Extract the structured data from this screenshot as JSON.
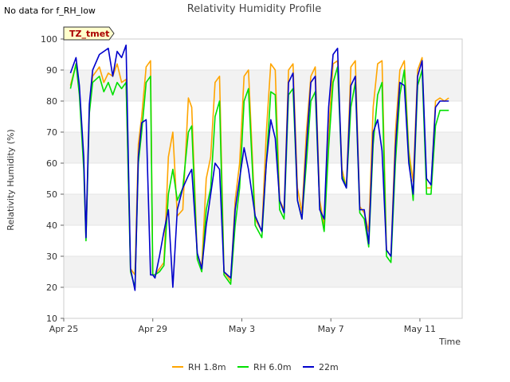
{
  "note": "No data for f_RH_low",
  "chart_data": {
    "type": "line",
    "title": "Relativity Humidity Profile",
    "xlabel": "Time",
    "ylabel": "Relativity Humidity (%)",
    "ylim": [
      10,
      100
    ],
    "xlim": [
      0,
      17.9
    ],
    "yticks": [
      10,
      20,
      30,
      40,
      50,
      60,
      70,
      80,
      90,
      100
    ],
    "xticks": [
      {
        "value": 0,
        "label": "Apr 25"
      },
      {
        "value": 4,
        "label": "Apr 29"
      },
      {
        "value": 8,
        "label": "May 3"
      },
      {
        "value": 12,
        "label": "May 7"
      },
      {
        "value": 16,
        "label": "May 11"
      }
    ],
    "grid": "horizontal alternating bands",
    "annotation": "TZ_tmet",
    "legend_position": "bottom",
    "series": [
      {
        "name": "RH 1.8m",
        "color": "#FFA500",
        "x": [
          0.3,
          0.55,
          0.7,
          0.9,
          1.0,
          1.15,
          1.3,
          1.6,
          1.8,
          2.0,
          2.2,
          2.4,
          2.6,
          2.8,
          3.0,
          3.2,
          3.35,
          3.5,
          3.7,
          3.9,
          4.0,
          4.1,
          4.3,
          4.5,
          4.7,
          4.9,
          5.1,
          5.35,
          5.6,
          5.75,
          6.0,
          6.2,
          6.4,
          6.6,
          6.8,
          7.0,
          7.2,
          7.5,
          7.7,
          7.9,
          8.1,
          8.3,
          8.6,
          8.9,
          9.1,
          9.3,
          9.5,
          9.7,
          9.9,
          10.1,
          10.3,
          10.5,
          10.7,
          10.9,
          11.1,
          11.3,
          11.5,
          11.7,
          11.9,
          12.1,
          12.3,
          12.5,
          12.7,
          12.9,
          13.1,
          13.3,
          13.5,
          13.7,
          13.9,
          14.1,
          14.3,
          14.5,
          14.7,
          14.9,
          15.1,
          15.3,
          15.5,
          15.7,
          15.9,
          16.1,
          16.3,
          16.5,
          16.7,
          16.9,
          17.1,
          17.3
        ],
        "values": [
          85,
          92,
          84,
          60,
          36,
          78,
          88,
          91,
          86,
          89,
          88,
          92,
          86,
          87,
          26,
          24,
          66,
          75,
          91,
          93,
          24,
          24,
          26,
          28,
          62,
          70,
          43,
          45,
          81,
          78,
          30,
          27,
          55,
          62,
          86,
          88,
          25,
          22,
          48,
          60,
          88,
          90,
          42,
          38,
          70,
          92,
          90,
          48,
          45,
          90,
          92,
          52,
          44,
          70,
          88,
          91,
          48,
          40,
          70,
          92,
          93,
          58,
          52,
          91,
          93,
          46,
          44,
          38,
          78,
          92,
          93,
          32,
          30,
          70,
          90,
          93,
          64,
          54,
          90,
          94,
          52,
          52,
          80,
          81,
          80,
          81
        ]
      },
      {
        "name": "RH 6.0m",
        "color": "#00E000",
        "x": [
          0.3,
          0.55,
          0.7,
          0.9,
          1.0,
          1.15,
          1.3,
          1.6,
          1.8,
          2.0,
          2.2,
          2.4,
          2.6,
          2.8,
          3.0,
          3.2,
          3.35,
          3.5,
          3.7,
          3.9,
          4.0,
          4.1,
          4.3,
          4.5,
          4.7,
          4.9,
          5.1,
          5.35,
          5.6,
          5.75,
          6.0,
          6.2,
          6.4,
          6.6,
          6.8,
          7.0,
          7.2,
          7.5,
          7.7,
          7.9,
          8.1,
          8.3,
          8.6,
          8.9,
          9.1,
          9.3,
          9.5,
          9.7,
          9.9,
          10.1,
          10.3,
          10.5,
          10.7,
          10.9,
          11.1,
          11.3,
          11.5,
          11.7,
          11.9,
          12.1,
          12.3,
          12.5,
          12.7,
          12.9,
          13.1,
          13.3,
          13.5,
          13.7,
          13.9,
          14.1,
          14.3,
          14.5,
          14.7,
          14.9,
          15.1,
          15.3,
          15.5,
          15.7,
          15.9,
          16.1,
          16.3,
          16.5,
          16.7,
          16.9,
          17.1,
          17.3
        ],
        "values": [
          84,
          92,
          82,
          58,
          35,
          76,
          86,
          88,
          83,
          86,
          82,
          86,
          84,
          86,
          25,
          20,
          60,
          70,
          86,
          88,
          24,
          24,
          25,
          27,
          50,
          58,
          48,
          52,
          70,
          72,
          29,
          25,
          45,
          52,
          75,
          80,
          24,
          21,
          40,
          52,
          80,
          84,
          40,
          36,
          60,
          83,
          82,
          45,
          42,
          82,
          84,
          48,
          42,
          60,
          80,
          83,
          46,
          38,
          65,
          86,
          91,
          56,
          52,
          78,
          86,
          44,
          42,
          33,
          66,
          82,
          86,
          30,
          28,
          60,
          82,
          90,
          62,
          48,
          85,
          90,
          50,
          50,
          72,
          77,
          77,
          77
        ]
      },
      {
        "name": "22m",
        "color": "#0000CC",
        "x": [
          0.3,
          0.55,
          0.7,
          0.9,
          1.0,
          1.15,
          1.3,
          1.6,
          1.8,
          2.0,
          2.2,
          2.4,
          2.6,
          2.8,
          3.0,
          3.2,
          3.35,
          3.5,
          3.7,
          3.9,
          4.0,
          4.1,
          4.3,
          4.5,
          4.7,
          4.9,
          5.1,
          5.35,
          5.6,
          5.75,
          6.0,
          6.2,
          6.4,
          6.6,
          6.8,
          7.0,
          7.2,
          7.5,
          7.7,
          7.9,
          8.1,
          8.3,
          8.6,
          8.9,
          9.1,
          9.3,
          9.5,
          9.7,
          9.9,
          10.1,
          10.3,
          10.5,
          10.7,
          10.9,
          11.1,
          11.3,
          11.5,
          11.7,
          11.9,
          12.1,
          12.3,
          12.5,
          12.7,
          12.9,
          13.1,
          13.3,
          13.5,
          13.7,
          13.9,
          14.1,
          14.3,
          14.5,
          14.7,
          14.9,
          15.1,
          15.3,
          15.5,
          15.7,
          15.9,
          16.1,
          16.3,
          16.5,
          16.7,
          16.9,
          17.1,
          17.3
        ],
        "values": [
          89,
          94,
          85,
          62,
          36,
          79,
          90,
          95,
          96,
          97,
          88,
          96,
          94,
          98,
          26,
          19,
          62,
          73,
          74,
          24,
          24,
          23,
          30,
          38,
          45,
          20,
          45,
          52,
          56,
          58,
          31,
          26,
          40,
          50,
          60,
          58,
          25,
          23,
          45,
          55,
          65,
          58,
          43,
          38,
          60,
          74,
          68,
          48,
          44,
          86,
          89,
          48,
          42,
          65,
          86,
          88,
          45,
          42,
          78,
          95,
          97,
          55,
          52,
          85,
          88,
          45,
          45,
          34,
          70,
          74,
          64,
          32,
          30,
          65,
          86,
          85,
          60,
          50,
          88,
          93,
          55,
          53,
          78,
          80,
          80,
          80
        ]
      }
    ]
  }
}
